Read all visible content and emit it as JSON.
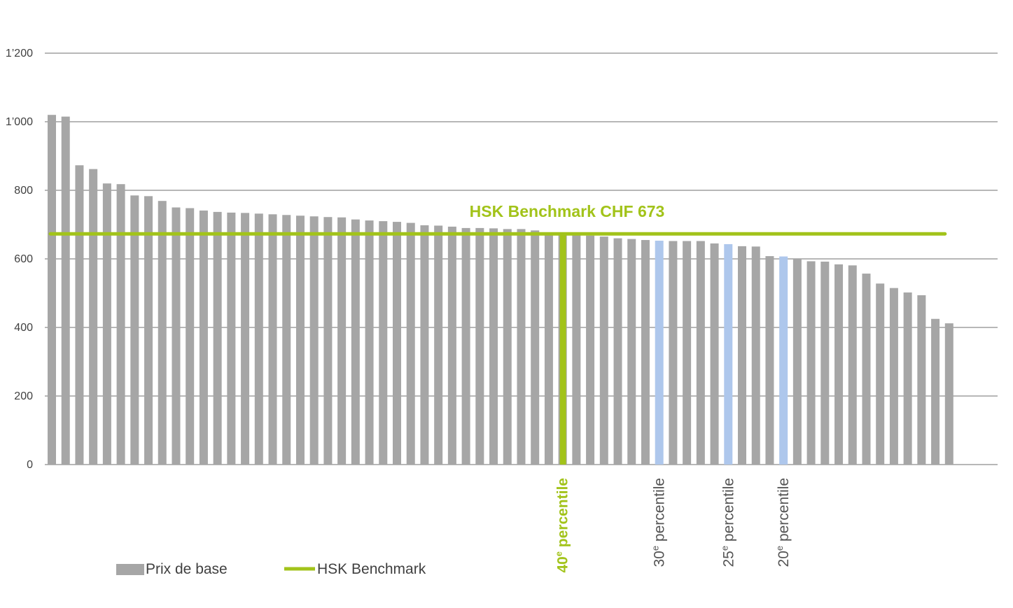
{
  "chart_data": {
    "type": "bar",
    "title": "",
    "xlabel": "",
    "ylabel": "",
    "ylim": [
      0,
      1200
    ],
    "yticks": [
      0,
      200,
      400,
      600,
      800,
      1000,
      1200
    ],
    "ytick_labels": [
      "0",
      "200",
      "400",
      "600",
      "800",
      "1’000",
      "1’200"
    ],
    "grid": true,
    "series": [
      {
        "name": "Prix de base",
        "color": "#a6a6a6",
        "values": [
          1020,
          1015,
          873,
          862,
          820,
          818,
          785,
          783,
          769,
          750,
          748,
          741,
          737,
          735,
          734,
          732,
          730,
          728,
          726,
          724,
          722,
          721,
          715,
          712,
          710,
          708,
          705,
          698,
          697,
          694,
          690,
          690,
          689,
          687,
          687,
          683,
          673,
          673,
          670,
          668,
          665,
          660,
          658,
          655,
          653,
          652,
          652,
          652,
          645,
          643,
          637,
          636,
          608,
          607,
          600,
          593,
          592,
          584,
          581,
          557,
          528,
          515,
          502,
          494,
          425,
          412
        ]
      }
    ],
    "highlight_color": "#aec7ec",
    "highlighted_bars": [
      44,
      49,
      53
    ],
    "benchmark": {
      "name": "HSK Benchmark",
      "value": 673,
      "label": "HSK Benchmark CHF 673",
      "color": "#a2c31a",
      "marker_bar": 37
    },
    "percentile_markers": [
      {
        "bar": 37,
        "number": "40",
        "sup": "e",
        "text": " percentile",
        "main": true
      },
      {
        "bar": 44,
        "number": "30",
        "sup": "e",
        "text": " percentile",
        "main": false
      },
      {
        "bar": 49,
        "number": "25",
        "sup": "e",
        "text": " percentile",
        "main": false
      },
      {
        "bar": 53,
        "number": "20",
        "sup": "e",
        "text": " percentile",
        "main": false
      }
    ],
    "legend": {
      "placement": "bottom-left",
      "items": [
        {
          "label": "Prix de base",
          "kind": "bar",
          "color": "#a6a6a6"
        },
        {
          "label": "HSK Benchmark",
          "kind": "line",
          "color": "#a2c31a"
        }
      ]
    }
  }
}
